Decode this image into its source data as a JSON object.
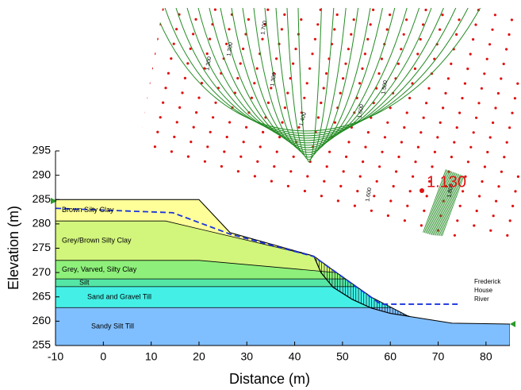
{
  "chart_data": {
    "type": "cross-section",
    "xlabel": "Distance (m)",
    "ylabel": "Elevation (m)",
    "xlim": [
      -10,
      85
    ],
    "ylim": [
      255,
      295
    ],
    "xticks": [
      -10,
      0,
      10,
      20,
      30,
      40,
      50,
      60,
      70,
      80
    ],
    "yticks": [
      255,
      260,
      265,
      270,
      275,
      280,
      285,
      290,
      295
    ],
    "surface": {
      "x": [
        -10,
        20,
        26.5,
        44,
        48,
        56.3,
        63.8,
        72.9,
        85
      ],
      "y": [
        285,
        285,
        278.2,
        273.4,
        270.5,
        264.8,
        261,
        259.6,
        259.4
      ]
    },
    "layers": [
      {
        "name": "Brown Silty Clay",
        "color": "#ffff99"
      },
      {
        "name": "Grey/Brown Silty Clay",
        "color": "#d2f57c",
        "top": {
          "x": [
            -10,
            13,
            50
          ],
          "y": [
            280.6,
            280.6,
            272
          ]
        }
      },
      {
        "name": "Grey, Varved, Silty Clay",
        "color": "#8ef07a",
        "top": {
          "x": [
            -10,
            20,
            60
          ],
          "y": [
            272.5,
            272.5,
            269
          ]
        }
      },
      {
        "name": "Silt",
        "color": "#55e6a6",
        "top": {
          "x": [
            -10,
            85
          ],
          "y": [
            268.7,
            268.7
          ]
        }
      },
      {
        "name": "Sand and Gravel Till",
        "color": "#44f0e6",
        "top": {
          "x": [
            -10,
            85
          ],
          "y": [
            267.1,
            267.1
          ]
        }
      },
      {
        "name": "Sandy Silt Till",
        "color": "#80bfff",
        "top": {
          "x": [
            -10,
            85
          ],
          "y": [
            262.8,
            262.8
          ]
        }
      }
    ],
    "piezometric_line": {
      "color": "#1a33dd",
      "x": [
        -10,
        14.5,
        26.5,
        44,
        58,
        74.5
      ],
      "y": [
        283.2,
        282.3,
        277.9,
        273.3,
        263.5,
        263.5
      ]
    },
    "slip_surface": {
      "x": [
        44,
        45.5,
        48,
        52,
        56,
        60,
        64
      ],
      "y": [
        273.4,
        270,
        267,
        264.5,
        262.7,
        261.6,
        261
      ]
    },
    "factor_of_safety": {
      "value": 1.13,
      "label": "1.130"
    },
    "contour_labels": [
      {
        "value": 1.3,
        "label": "1.300"
      },
      {
        "value": 1.2,
        "label": "1.200"
      },
      {
        "value": 1.7,
        "label": "1.700"
      },
      {
        "value": 1.3,
        "label": "1.300"
      },
      {
        "value": 1.4,
        "label": "1.400"
      },
      {
        "value": 1.6,
        "label": "1.600"
      },
      {
        "value": 1.5,
        "label": "1.500"
      },
      {
        "value": 1.6,
        "label": "1.600"
      },
      {
        "value": 1.8,
        "label": "1.800"
      }
    ],
    "annotation": [
      "Frederick",
      "House",
      "River"
    ]
  }
}
